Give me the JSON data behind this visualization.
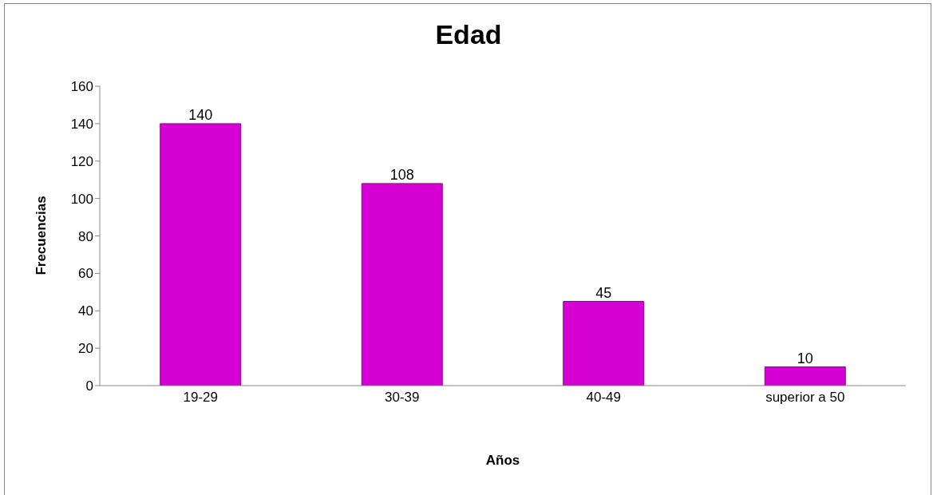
{
  "chart_data": {
    "type": "bar",
    "title": "Edad",
    "xlabel": "Años",
    "ylabel": "Frecuencias",
    "categories": [
      "19-29",
      "30-39",
      "40-49",
      "superior a 50"
    ],
    "values": [
      140,
      108,
      45,
      10
    ],
    "color": "#d400d4",
    "ylim": [
      0,
      160
    ],
    "yticks": [
      0,
      20,
      40,
      60,
      80,
      100,
      120,
      140,
      160
    ],
    "grid": false,
    "data_labels": true
  }
}
